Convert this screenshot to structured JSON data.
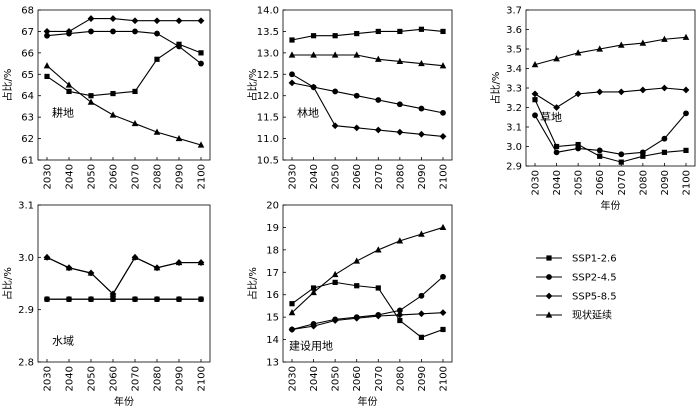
{
  "chart_data": [
    {
      "type": "line",
      "panel_label": "耕地",
      "ylabel": "占比/%",
      "xlabel": "",
      "x": [
        2030,
        2040,
        2050,
        2060,
        2070,
        2080,
        2090,
        2100
      ],
      "yticks": [
        61,
        62,
        63,
        64,
        65,
        66,
        67,
        68
      ],
      "ylim": [
        61,
        68
      ],
      "series": [
        {
          "name": "SSP1-2.6",
          "marker": "square",
          "values": [
            64.9,
            64.2,
            64.0,
            64.1,
            64.2,
            65.7,
            66.4,
            66.0
          ]
        },
        {
          "name": "SSP2-4.5",
          "marker": "circle",
          "values": [
            66.8,
            66.9,
            67.0,
            67.0,
            67.0,
            66.9,
            66.3,
            65.5
          ]
        },
        {
          "name": "SSP5-8.5",
          "marker": "diamond",
          "values": [
            67.0,
            67.0,
            67.6,
            67.6,
            67.5,
            67.5,
            67.5,
            67.5
          ]
        },
        {
          "name": "现状延续",
          "marker": "triangle",
          "values": [
            65.4,
            64.5,
            63.7,
            63.1,
            62.7,
            62.3,
            62.0,
            61.7
          ]
        }
      ]
    },
    {
      "type": "line",
      "panel_label": "林地",
      "ylabel": "占比/%",
      "xlabel": "",
      "x": [
        2030,
        2040,
        2050,
        2060,
        2070,
        2080,
        2090,
        2100
      ],
      "yticks": [
        "10.5",
        "11.0",
        "11.5",
        "12.0",
        "12.5",
        "13.0",
        "13.5",
        "14.0"
      ],
      "ylim": [
        10.5,
        14.0
      ],
      "series": [
        {
          "name": "SSP1-2.6",
          "marker": "square",
          "values": [
            13.3,
            13.4,
            13.4,
            13.45,
            13.5,
            13.5,
            13.55,
            13.5
          ]
        },
        {
          "name": "SSP2-4.5",
          "marker": "circle",
          "values": [
            12.5,
            12.2,
            12.1,
            12.0,
            11.9,
            11.8,
            11.7,
            11.6
          ]
        },
        {
          "name": "SSP5-8.5",
          "marker": "diamond",
          "values": [
            12.3,
            12.2,
            11.3,
            11.25,
            11.2,
            11.15,
            11.1,
            11.05
          ]
        },
        {
          "name": "现状延续",
          "marker": "triangle",
          "values": [
            12.95,
            12.95,
            12.95,
            12.95,
            12.85,
            12.8,
            12.75,
            12.7
          ]
        }
      ]
    },
    {
      "type": "line",
      "panel_label": "草地",
      "ylabel": "占比/%",
      "xlabel": "年份",
      "x": [
        2030,
        2040,
        2050,
        2060,
        2070,
        2080,
        2090,
        2100
      ],
      "yticks": [
        "2.9",
        "3.0",
        "3.1",
        "3.2",
        "3.3",
        "3.4",
        "3.5",
        "3.6",
        "3.7"
      ],
      "ylim": [
        2.9,
        3.7
      ],
      "series": [
        {
          "name": "SSP1-2.6",
          "marker": "square",
          "values": [
            3.24,
            3.0,
            3.01,
            2.95,
            2.92,
            2.95,
            2.97,
            2.98
          ]
        },
        {
          "name": "SSP2-4.5",
          "marker": "circle",
          "values": [
            3.16,
            2.97,
            2.99,
            2.98,
            2.96,
            2.97,
            3.04,
            3.17
          ]
        },
        {
          "name": "SSP5-8.5",
          "marker": "diamond",
          "values": [
            3.27,
            3.2,
            3.27,
            3.28,
            3.28,
            3.29,
            3.3,
            3.29
          ]
        },
        {
          "name": "现状延续",
          "marker": "triangle",
          "values": [
            3.42,
            3.45,
            3.48,
            3.5,
            3.52,
            3.53,
            3.55,
            3.56
          ]
        }
      ]
    },
    {
      "type": "line",
      "panel_label": "水域",
      "ylabel": "占比/%",
      "xlabel": "年份",
      "x": [
        2030,
        2040,
        2050,
        2060,
        2070,
        2080,
        2090,
        2100
      ],
      "yticks": [
        "2.8",
        "2.9",
        "3.0",
        "3.1"
      ],
      "ylim": [
        2.8,
        3.1
      ],
      "series": [
        {
          "name": "SSP1-2.6",
          "marker": "square",
          "values": [
            2.92,
            2.92,
            2.92,
            2.92,
            2.92,
            2.92,
            2.92,
            2.92
          ]
        },
        {
          "name": "SSP2-4.5",
          "marker": "circle",
          "values": [
            2.92,
            2.92,
            2.92,
            2.92,
            2.92,
            2.92,
            2.92,
            2.92
          ]
        },
        {
          "name": "SSP5-8.5",
          "marker": "diamond",
          "values": [
            3.0,
            2.98,
            2.97,
            2.93,
            3.0,
            2.98,
            2.99,
            2.99
          ]
        },
        {
          "name": "现状延续",
          "marker": "triangle",
          "values": [
            3.0,
            2.98,
            2.97,
            2.93,
            3.0,
            2.98,
            2.99,
            2.99
          ]
        }
      ]
    },
    {
      "type": "line",
      "panel_label": "建设用地",
      "ylabel": "占比/%",
      "xlabel": "年份",
      "x": [
        2030,
        2040,
        2050,
        2060,
        2070,
        2080,
        2090,
        2100
      ],
      "yticks": [
        13,
        14,
        15,
        16,
        17,
        18,
        19,
        20
      ],
      "ylim": [
        13,
        20
      ],
      "series": [
        {
          "name": "SSP1-2.6",
          "marker": "square",
          "values": [
            15.6,
            16.3,
            16.55,
            16.4,
            16.3,
            14.85,
            14.1,
            14.45
          ]
        },
        {
          "name": "SSP2-4.5",
          "marker": "circle",
          "values": [
            14.45,
            14.7,
            14.9,
            15.0,
            15.1,
            15.3,
            15.95,
            16.8
          ]
        },
        {
          "name": "SSP5-8.5",
          "marker": "diamond",
          "values": [
            14.45,
            14.6,
            14.85,
            14.95,
            15.05,
            15.1,
            15.15,
            15.2
          ]
        },
        {
          "name": "现状延续",
          "marker": "triangle",
          "values": [
            15.2,
            16.1,
            16.9,
            17.5,
            18.0,
            18.4,
            18.7,
            19.0
          ]
        }
      ]
    }
  ],
  "legend": {
    "entries": [
      {
        "name": "SSP1-2.6",
        "marker": "square"
      },
      {
        "name": "SSP2-4.5",
        "marker": "circle"
      },
      {
        "name": "SSP5-8.5",
        "marker": "diamond"
      },
      {
        "name": "现状延续",
        "marker": "triangle"
      }
    ]
  }
}
